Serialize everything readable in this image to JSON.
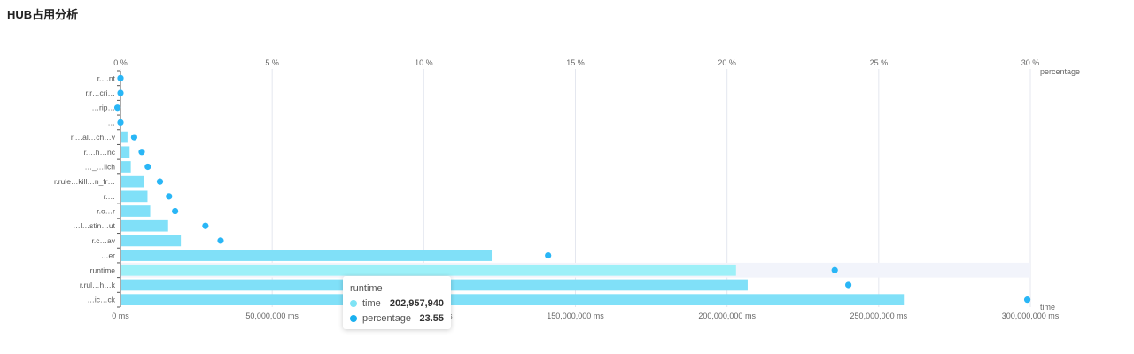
{
  "page": {
    "title": "HUB占用分析"
  },
  "tooltip": {
    "title": "runtime",
    "rows": [
      {
        "name": "time",
        "value": "202,957,940",
        "color": "#7ee3f5"
      },
      {
        "name": "percentage",
        "value": "23.55",
        "color": "#1ab0ef"
      }
    ]
  },
  "colors": {
    "bar": "#80e0f8",
    "bar_highlight": "#9df0f8",
    "point": "#29b6f6",
    "highlight_band": "#f2f4fb",
    "grid": "#e4e7ef"
  },
  "chart_data": {
    "type": "bar",
    "orientation": "horizontal",
    "title": "HUB占用分析",
    "categories": [
      "r.…nt",
      "r.r…cri…",
      "…rip…",
      "…",
      "r.…al…ch…v",
      "r.…h…nc",
      "…_…lich",
      "r.rule…kill…n_fr…",
      "r.…",
      "r.o…r",
      "…l…stin…ut",
      "r.c…av",
      "…er",
      "runtime",
      "r.rul…h…k",
      "…ic…ck"
    ],
    "highlighted_category": "runtime",
    "series": [
      {
        "name": "time",
        "axis": "bottom",
        "values": [
          0,
          0,
          0,
          0,
          2300000,
          3000000,
          3400000,
          7800000,
          8900000,
          9800000,
          15700000,
          19900000,
          122400000,
          202957940,
          206800000,
          258300000
        ]
      },
      {
        "name": "percentage",
        "axis": "top",
        "values": [
          0.0,
          0.0,
          -0.1,
          0.0,
          0.45,
          0.7,
          0.9,
          1.3,
          1.6,
          1.8,
          2.8,
          3.3,
          14.1,
          23.55,
          24.0,
          29.9
        ]
      }
    ],
    "xaxis_bottom": {
      "name": "time",
      "range": [
        0,
        300000000
      ],
      "ticks": [
        "0 ms",
        "50,000,000 ms",
        "100,000,000 ms",
        "150,000,000 ms",
        "200,000,000 ms",
        "250,000,000 ms",
        "300,000,000 ms"
      ],
      "tick_values": [
        0,
        50000000,
        100000000,
        150000000,
        200000000,
        250000000,
        300000000
      ]
    },
    "xaxis_top": {
      "name": "percentage",
      "range": [
        0,
        30
      ],
      "ticks": [
        "0 %",
        "5 %",
        "10 %",
        "15 %",
        "20 %",
        "25 %",
        "30 %"
      ],
      "tick_values": [
        0,
        5,
        10,
        15,
        20,
        25,
        30
      ]
    },
    "grid": true
  }
}
